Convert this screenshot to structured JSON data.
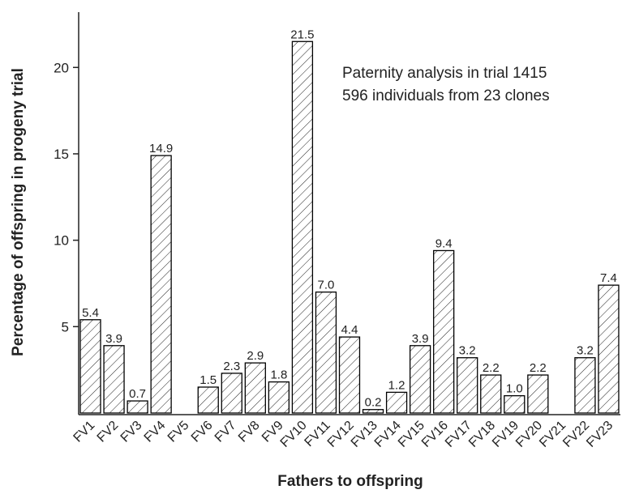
{
  "chart_data": {
    "type": "bar",
    "annotations": [
      "Paternity analysis in trial 1415",
      "596 individuals from 23 clones"
    ],
    "xlabel": "Fathers to offspring",
    "ylabel": "Percentage of offspring in progeny trial",
    "categories": [
      "FV1",
      "FV2",
      "FV3",
      "FV4",
      "FV5",
      "FV6",
      "FV7",
      "FV8",
      "FV9",
      "FV10",
      "FV11",
      "FV12",
      "FV13",
      "FV14",
      "FV15",
      "FV16",
      "FV17",
      "FV18",
      "FV19",
      "FV20",
      "FV21",
      "FV22",
      "FV23"
    ],
    "values": [
      5.4,
      3.9,
      0.7,
      14.9,
      null,
      1.5,
      2.3,
      2.9,
      1.8,
      21.5,
      7.0,
      4.4,
      0.2,
      1.2,
      3.9,
      9.4,
      3.2,
      2.2,
      1.0,
      2.2,
      null,
      3.2,
      7.4
    ],
    "value_labels": [
      "5.4",
      "3.9",
      "0.7",
      "14.9",
      null,
      "1.5",
      "2.3",
      "2.9",
      "1.8",
      "21.5",
      "7.0",
      "4.4",
      "0.2",
      "1.2",
      "3.9",
      "9.4",
      "3.2",
      "2.2",
      "1.0",
      "2.2",
      null,
      "3.2",
      "7.4"
    ],
    "color": "#000000",
    "ylim": [
      0,
      23.2
    ],
    "yticks": [
      5,
      10,
      15,
      20
    ]
  }
}
